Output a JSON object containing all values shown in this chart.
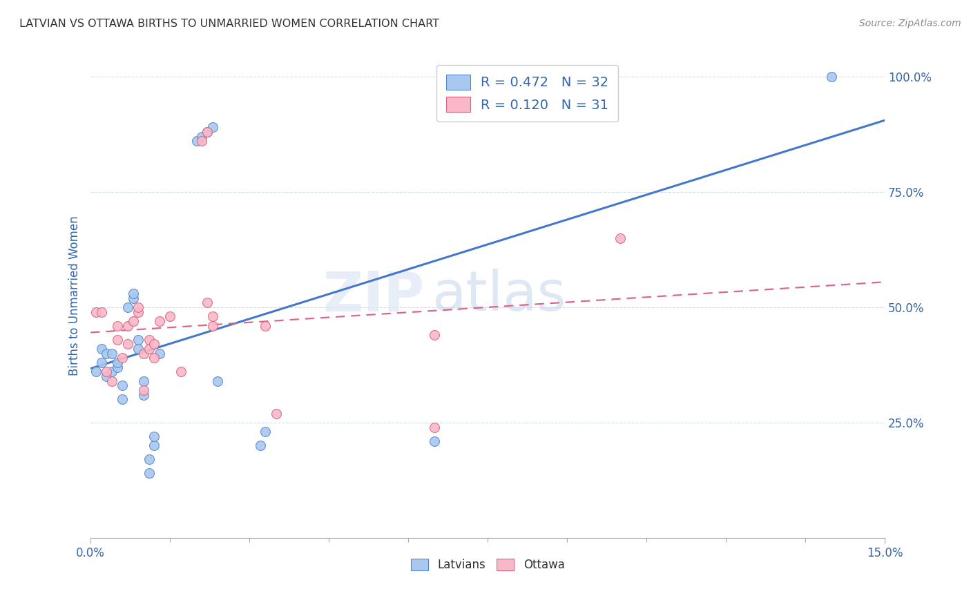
{
  "title": "LATVIAN VS OTTAWA BIRTHS TO UNMARRIED WOMEN CORRELATION CHART",
  "source": "Source: ZipAtlas.com",
  "ylabel": "Births to Unmarried Women",
  "xlim": [
    0.0,
    0.15
  ],
  "ylim": [
    0.0,
    1.05
  ],
  "latvian_R": 0.472,
  "latvian_N": 32,
  "ottawa_R": 0.12,
  "ottawa_N": 31,
  "latvian_color": "#a8c8f0",
  "ottawa_color": "#f8b8c8",
  "latvian_edge_color": "#5588cc",
  "ottawa_edge_color": "#e06080",
  "latvian_line_color": "#4477cc",
  "ottawa_line_color": "#dd6688",
  "watermark_zip": "ZIP",
  "watermark_atlas": "atlas",
  "background_color": "#ffffff",
  "grid_color": "#ccddee",
  "title_color": "#333333",
  "axis_label_color": "#3366aa",
  "tick_label_color": "#3366aa",
  "latvian_scatter_x": [
    0.001,
    0.002,
    0.002,
    0.003,
    0.003,
    0.004,
    0.004,
    0.005,
    0.005,
    0.006,
    0.006,
    0.007,
    0.008,
    0.008,
    0.009,
    0.009,
    0.01,
    0.01,
    0.011,
    0.011,
    0.012,
    0.012,
    0.013,
    0.02,
    0.021,
    0.022,
    0.023,
    0.024,
    0.032,
    0.033,
    0.065,
    0.14
  ],
  "latvian_scatter_y": [
    0.36,
    0.38,
    0.41,
    0.35,
    0.4,
    0.36,
    0.4,
    0.37,
    0.38,
    0.3,
    0.33,
    0.5,
    0.52,
    0.53,
    0.41,
    0.43,
    0.31,
    0.34,
    0.14,
    0.17,
    0.2,
    0.22,
    0.4,
    0.86,
    0.87,
    0.88,
    0.89,
    0.34,
    0.2,
    0.23,
    0.21,
    1.0
  ],
  "ottawa_scatter_x": [
    0.001,
    0.002,
    0.003,
    0.004,
    0.005,
    0.005,
    0.006,
    0.007,
    0.007,
    0.008,
    0.009,
    0.009,
    0.01,
    0.01,
    0.011,
    0.011,
    0.012,
    0.012,
    0.013,
    0.015,
    0.017,
    0.021,
    0.022,
    0.022,
    0.023,
    0.023,
    0.033,
    0.035,
    0.065,
    0.065,
    0.1
  ],
  "ottawa_scatter_y": [
    0.49,
    0.49,
    0.36,
    0.34,
    0.43,
    0.46,
    0.39,
    0.42,
    0.46,
    0.47,
    0.49,
    0.5,
    0.32,
    0.4,
    0.41,
    0.43,
    0.39,
    0.42,
    0.47,
    0.48,
    0.36,
    0.86,
    0.88,
    0.51,
    0.46,
    0.48,
    0.46,
    0.27,
    0.44,
    0.24,
    0.65
  ]
}
